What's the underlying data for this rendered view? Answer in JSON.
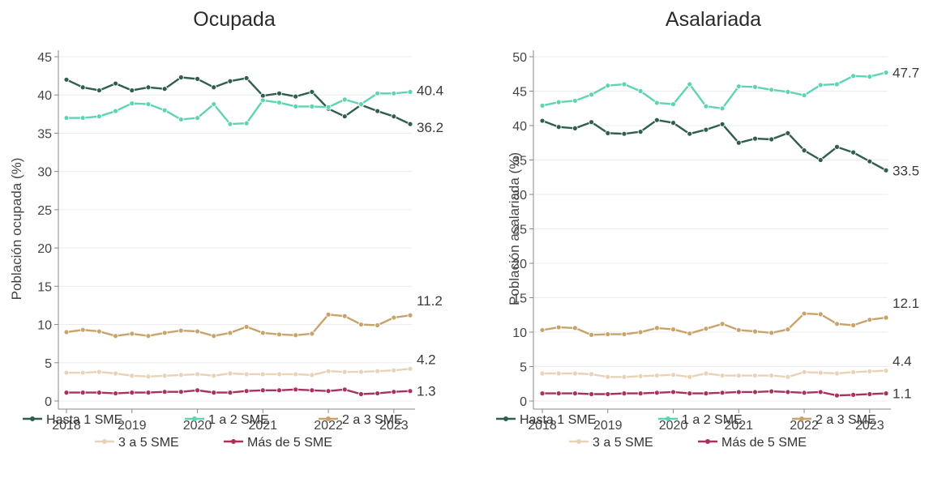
{
  "chart_data": [
    {
      "type": "line",
      "title": "Ocupada",
      "ylabel": "Población ocupada (%)",
      "ylim": [
        0,
        45
      ],
      "yticks": [
        0,
        5,
        10,
        15,
        20,
        25,
        30,
        35,
        40,
        45
      ],
      "xticks": [
        "2018",
        "2019",
        "2020",
        "2021",
        "2022",
        "2023"
      ],
      "x": [
        2018.0,
        2018.25,
        2018.5,
        2018.75,
        2019.0,
        2019.25,
        2019.5,
        2019.75,
        2020.0,
        2020.25,
        2020.5,
        2020.75,
        2021.0,
        2021.25,
        2021.5,
        2021.75,
        2022.0,
        2022.25,
        2022.5,
        2022.75,
        2023.0,
        2023.25
      ],
      "grid": true,
      "legend": "bottom",
      "series": [
        {
          "name": "Hasta 1 SME",
          "color": "#2f5d4f",
          "end_label": "36.2",
          "values": [
            42.0,
            41.0,
            40.6,
            41.5,
            40.6,
            41.0,
            40.8,
            42.3,
            42.1,
            41.0,
            41.8,
            42.2,
            39.9,
            40.2,
            39.8,
            40.4,
            38.2,
            37.2,
            38.7,
            37.9,
            37.2,
            36.2
          ]
        },
        {
          "name": "1 a 2 SME",
          "color": "#5fd4b4",
          "end_label": "40.4",
          "values": [
            37.0,
            37.0,
            37.2,
            37.9,
            38.9,
            38.8,
            38.0,
            36.8,
            37.0,
            38.8,
            36.2,
            36.3,
            39.3,
            39.0,
            38.5,
            38.5,
            38.4,
            39.4,
            38.8,
            40.2,
            40.2,
            40.4
          ]
        },
        {
          "name": "2 a 3 SME",
          "color": "#c8a46c",
          "end_label": "11.2",
          "values": [
            9.0,
            9.3,
            9.1,
            8.5,
            8.8,
            8.5,
            8.9,
            9.2,
            9.1,
            8.5,
            8.9,
            9.7,
            8.9,
            8.7,
            8.6,
            8.8,
            11.3,
            11.1,
            10.0,
            9.9,
            10.9,
            11.2
          ]
        },
        {
          "name": "3 a 5 SME",
          "color": "#e8d2b8",
          "end_label": "4.2",
          "values": [
            3.7,
            3.7,
            3.8,
            3.6,
            3.3,
            3.2,
            3.3,
            3.4,
            3.5,
            3.3,
            3.6,
            3.5,
            3.5,
            3.5,
            3.5,
            3.4,
            3.9,
            3.8,
            3.8,
            3.9,
            4.0,
            4.2
          ]
        },
        {
          "name": "Más de 5 SME",
          "color": "#a8325e",
          "end_label": "1.3",
          "values": [
            1.1,
            1.1,
            1.1,
            1.0,
            1.1,
            1.1,
            1.2,
            1.2,
            1.4,
            1.1,
            1.1,
            1.3,
            1.4,
            1.4,
            1.5,
            1.4,
            1.3,
            1.5,
            0.9,
            1.0,
            1.2,
            1.3
          ]
        }
      ]
    },
    {
      "type": "line",
      "title": "Asalariada",
      "ylabel": "Población asalariada (%)",
      "ylim": [
        0,
        50
      ],
      "yticks": [
        0,
        5,
        10,
        15,
        20,
        25,
        30,
        35,
        40,
        45,
        50
      ],
      "xticks": [
        "2018",
        "2019",
        "2020",
        "2021",
        "2022",
        "2023"
      ],
      "x": [
        2018.0,
        2018.25,
        2018.5,
        2018.75,
        2019.0,
        2019.25,
        2019.5,
        2019.75,
        2020.0,
        2020.25,
        2020.5,
        2020.75,
        2021.0,
        2021.25,
        2021.5,
        2021.75,
        2022.0,
        2022.25,
        2022.5,
        2022.75,
        2023.0,
        2023.25
      ],
      "grid": true,
      "legend": "bottom",
      "series": [
        {
          "name": "Hasta 1 SME",
          "color": "#2f5d4f",
          "end_label": "33.5",
          "values": [
            40.7,
            39.8,
            39.6,
            40.5,
            38.9,
            38.8,
            39.1,
            40.8,
            40.4,
            38.8,
            39.4,
            40.2,
            37.5,
            38.1,
            38.0,
            38.9,
            36.4,
            35.0,
            36.9,
            36.1,
            34.8,
            33.5
          ]
        },
        {
          "name": "1 a 2 SME",
          "color": "#5fd4b4",
          "end_label": "47.7",
          "values": [
            42.9,
            43.4,
            43.6,
            44.5,
            45.8,
            46.0,
            45.0,
            43.3,
            43.1,
            46.0,
            42.8,
            42.5,
            45.7,
            45.6,
            45.2,
            44.9,
            44.4,
            45.9,
            46.0,
            47.2,
            47.1,
            47.7
          ]
        },
        {
          "name": "2 a 3 SME",
          "color": "#c8a46c",
          "end_label": "12.1",
          "values": [
            10.3,
            10.7,
            10.6,
            9.6,
            9.7,
            9.7,
            10.0,
            10.6,
            10.4,
            9.8,
            10.5,
            11.2,
            10.3,
            10.1,
            9.9,
            10.4,
            12.7,
            12.6,
            11.2,
            11.0,
            11.8,
            12.1
          ]
        },
        {
          "name": "3 a 5 SME",
          "color": "#e8d2b8",
          "end_label": "4.4",
          "values": [
            4.0,
            4.0,
            4.0,
            3.9,
            3.5,
            3.5,
            3.6,
            3.7,
            3.8,
            3.5,
            4.0,
            3.7,
            3.7,
            3.7,
            3.7,
            3.5,
            4.2,
            4.1,
            4.0,
            4.2,
            4.3,
            4.4
          ]
        },
        {
          "name": "Más de 5 SME",
          "color": "#a8325e",
          "end_label": "1.1",
          "values": [
            1.1,
            1.1,
            1.1,
            1.0,
            1.0,
            1.1,
            1.1,
            1.2,
            1.3,
            1.1,
            1.1,
            1.2,
            1.3,
            1.3,
            1.4,
            1.3,
            1.2,
            1.3,
            0.8,
            0.9,
            1.0,
            1.1
          ]
        }
      ]
    }
  ]
}
